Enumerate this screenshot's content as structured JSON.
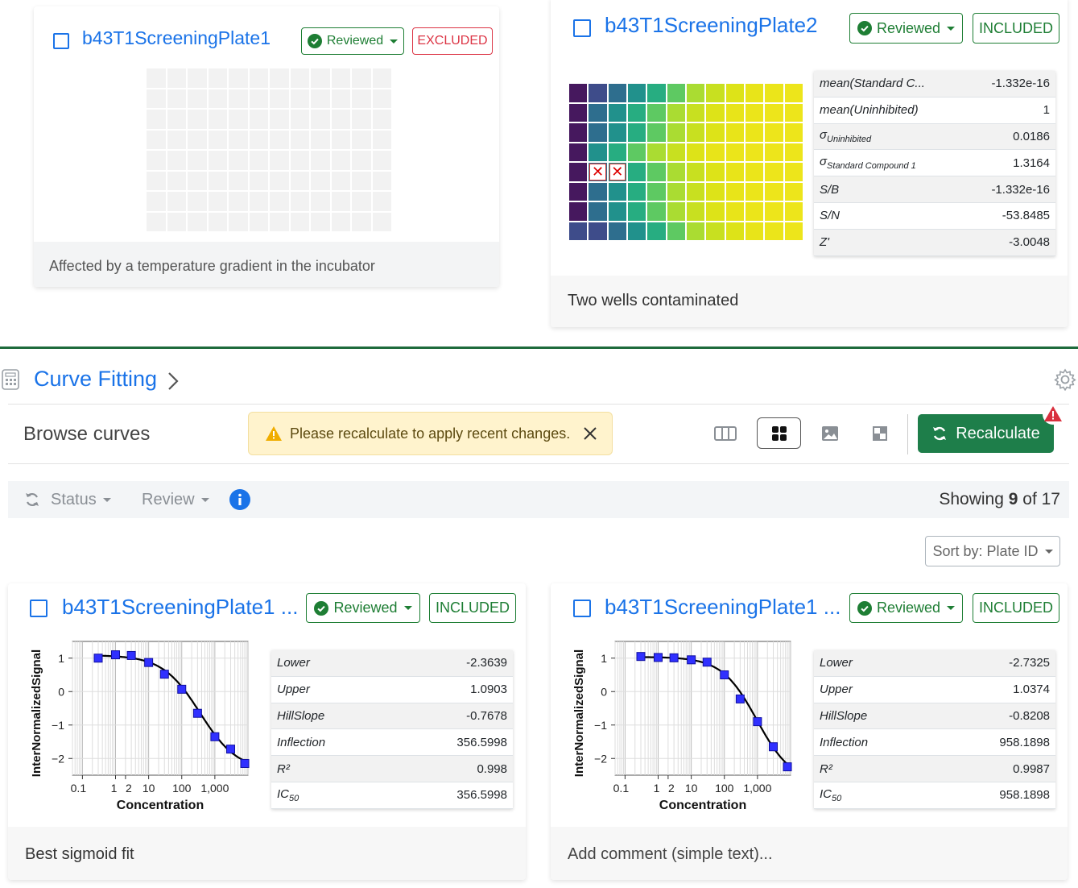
{
  "plates": [
    {
      "title": "b43T1ScreeningPlate1",
      "review_label": "Reviewed",
      "status": "EXCLUDED",
      "comment": "Affected by a temperature gradient in the incubator"
    },
    {
      "title": "b43T1ScreeningPlate2",
      "review_label": "Reviewed",
      "status": "INCLUDED",
      "comment": "Two wells contaminated",
      "stats": [
        {
          "key": "mean(Standard C...",
          "value": "-1.332e-16"
        },
        {
          "key": "mean(Uninhibited)",
          "value": "1"
        },
        {
          "key": "σ",
          "sub": "Uninhibited",
          "value": "0.0186"
        },
        {
          "key": "σ",
          "sub": "Standard Compound 1",
          "value": "1.3164"
        },
        {
          "key": "S/B",
          "value": "-1.332e-16"
        },
        {
          "key": "S/N",
          "value": "-53.8485"
        },
        {
          "key": "Z'",
          "value": "-3.0048"
        }
      ],
      "heatmap_colors": [
        "#46185e",
        "#3e4c8a",
        "#2e6e8e",
        "#21918c",
        "#27ad81",
        "#5ec962",
        "#aadc32",
        "#c8e020",
        "#dde318",
        "#e8e419",
        "#ebe51a",
        "#ede51b"
      ],
      "excluded_wells": [
        {
          "row": 4,
          "col": 1
        },
        {
          "row": 4,
          "col": 2
        }
      ]
    }
  ],
  "section": {
    "title": "Curve Fitting"
  },
  "toolbar": {
    "browse_label": "Browse curves",
    "alert_text": "Please recalculate to apply recent changes.",
    "recalculate_label": "Recalculate",
    "view_icons": [
      "columns-icon",
      "grid-icon",
      "image-icon",
      "heatmap-icon"
    ]
  },
  "filters": {
    "status_label": "Status",
    "review_label": "Review",
    "showing_prefix": "Showing",
    "showing_count": "9",
    "showing_suffix": "of 17",
    "sort_label": "Sort by: Plate ID"
  },
  "curves": [
    {
      "title": "b43T1ScreeningPlate1 ...",
      "review_label": "Reviewed",
      "status": "INCLUDED",
      "comment": "Best sigmoid fit",
      "comment_placeholder": false,
      "stats": [
        {
          "key": "Lower",
          "value": "-2.3639"
        },
        {
          "key": "Upper",
          "value": "1.0903"
        },
        {
          "key": "HillSlope",
          "value": "-0.7678"
        },
        {
          "key": "Inflection",
          "value": "356.5998"
        },
        {
          "key": "R²",
          "value": "0.998"
        },
        {
          "key": "IC",
          "sub": "50",
          "value": "356.5998"
        }
      ]
    },
    {
      "title": "b43T1ScreeningPlate1 ...",
      "review_label": "Reviewed",
      "status": "INCLUDED",
      "comment": "Add comment (simple text)...",
      "comment_placeholder": true,
      "stats": [
        {
          "key": "Lower",
          "value": "-2.7325"
        },
        {
          "key": "Upper",
          "value": "1.0374"
        },
        {
          "key": "HillSlope",
          "value": "-0.8208"
        },
        {
          "key": "Inflection",
          "value": "958.1898"
        },
        {
          "key": "R²",
          "value": "0.9987"
        },
        {
          "key": "IC",
          "sub": "50",
          "value": "958.1898"
        }
      ]
    }
  ],
  "chart_data": [
    {
      "type": "scatter",
      "xlabel": "Concentration",
      "ylabel": "InterNormalizedSignal",
      "xscale": "log",
      "xlim": [
        0.05,
        10000
      ],
      "ylim": [
        -2.5,
        1.5
      ],
      "xticks": [
        "0.1",
        "1",
        "2",
        "10",
        "100",
        "1,000"
      ],
      "yticks": [
        "1",
        "0",
        "−1",
        "−2"
      ],
      "x": [
        0.3,
        1,
        3,
        10,
        30,
        100,
        300,
        1000,
        3000,
        8000
      ],
      "y": [
        1.0,
        1.1,
        1.08,
        0.87,
        0.52,
        0.07,
        -0.65,
        -1.35,
        -1.72,
        -2.15
      ],
      "fit": {
        "lower": -2.3639,
        "upper": 1.0903,
        "hill": -0.7678,
        "inflection": 356.5998
      }
    },
    {
      "type": "scatter",
      "xlabel": "Concentration",
      "ylabel": "InterNormalizedSignal",
      "xscale": "log",
      "xlim": [
        0.05,
        10000
      ],
      "ylim": [
        -2.5,
        1.5
      ],
      "xticks": [
        "0.1",
        "1",
        "2",
        "10",
        "100",
        "1,000"
      ],
      "yticks": [
        "1",
        "0",
        "−1",
        "−2"
      ],
      "x": [
        0.3,
        1,
        3,
        10,
        30,
        100,
        300,
        1000,
        3000,
        8000
      ],
      "y": [
        1.05,
        1.02,
        1.01,
        0.95,
        0.88,
        0.5,
        -0.22,
        -0.9,
        -1.65,
        -2.25
      ],
      "fit": {
        "lower": -2.7325,
        "upper": 1.0374,
        "hill": -0.8208,
        "inflection": 958.1898
      }
    }
  ],
  "colors": {
    "accent": "#1a73e8",
    "success": "#1e7e34",
    "danger": "#dc3545",
    "warning_bg": "#fff3cd",
    "marker": "#3030ff"
  }
}
